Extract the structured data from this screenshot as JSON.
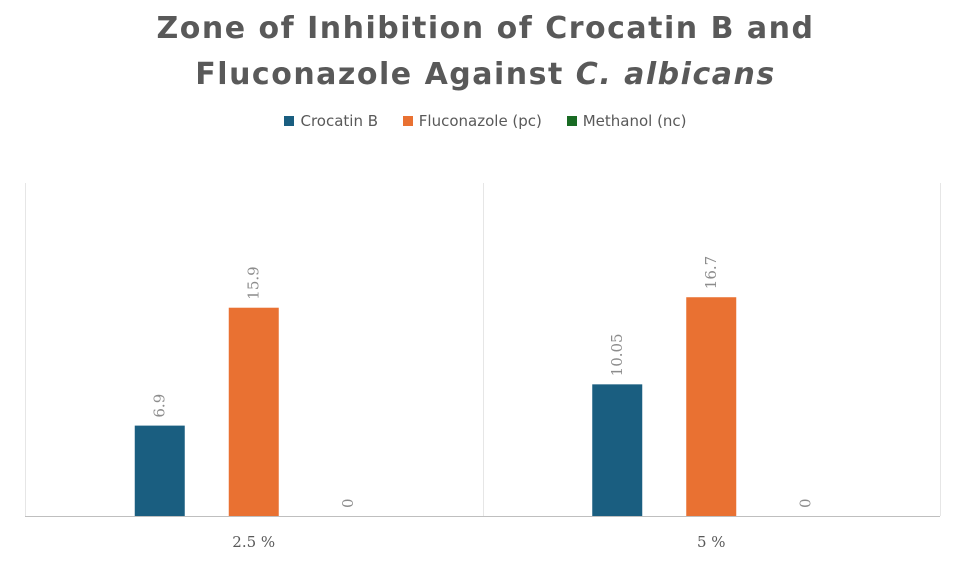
{
  "chart_data": {
    "type": "bar",
    "title_line1": "Zone of Inhibition of Crocatin B and",
    "title_line2_prefix": "Fluconazole Against ",
    "title_line2_italic": "C. albicans",
    "categories": [
      "2.5 %",
      "5 %"
    ],
    "series": [
      {
        "name": "Crocatin B",
        "color": "#1a5e80",
        "values": [
          6.9,
          10.05
        ],
        "labels": [
          "6.9",
          "10.05"
        ]
      },
      {
        "name": "Fluconazole (pc)",
        "color": "#e97132",
        "values": [
          15.9,
          16.7
        ],
        "labels": [
          "15.9",
          "16.7"
        ]
      },
      {
        "name": "Methanol (nc)",
        "color": "#196b24",
        "values": [
          0,
          0
        ],
        "labels": [
          "0",
          "0"
        ]
      }
    ],
    "ylim": [
      0,
      18
    ],
    "legend_position": "top",
    "grid": false
  }
}
